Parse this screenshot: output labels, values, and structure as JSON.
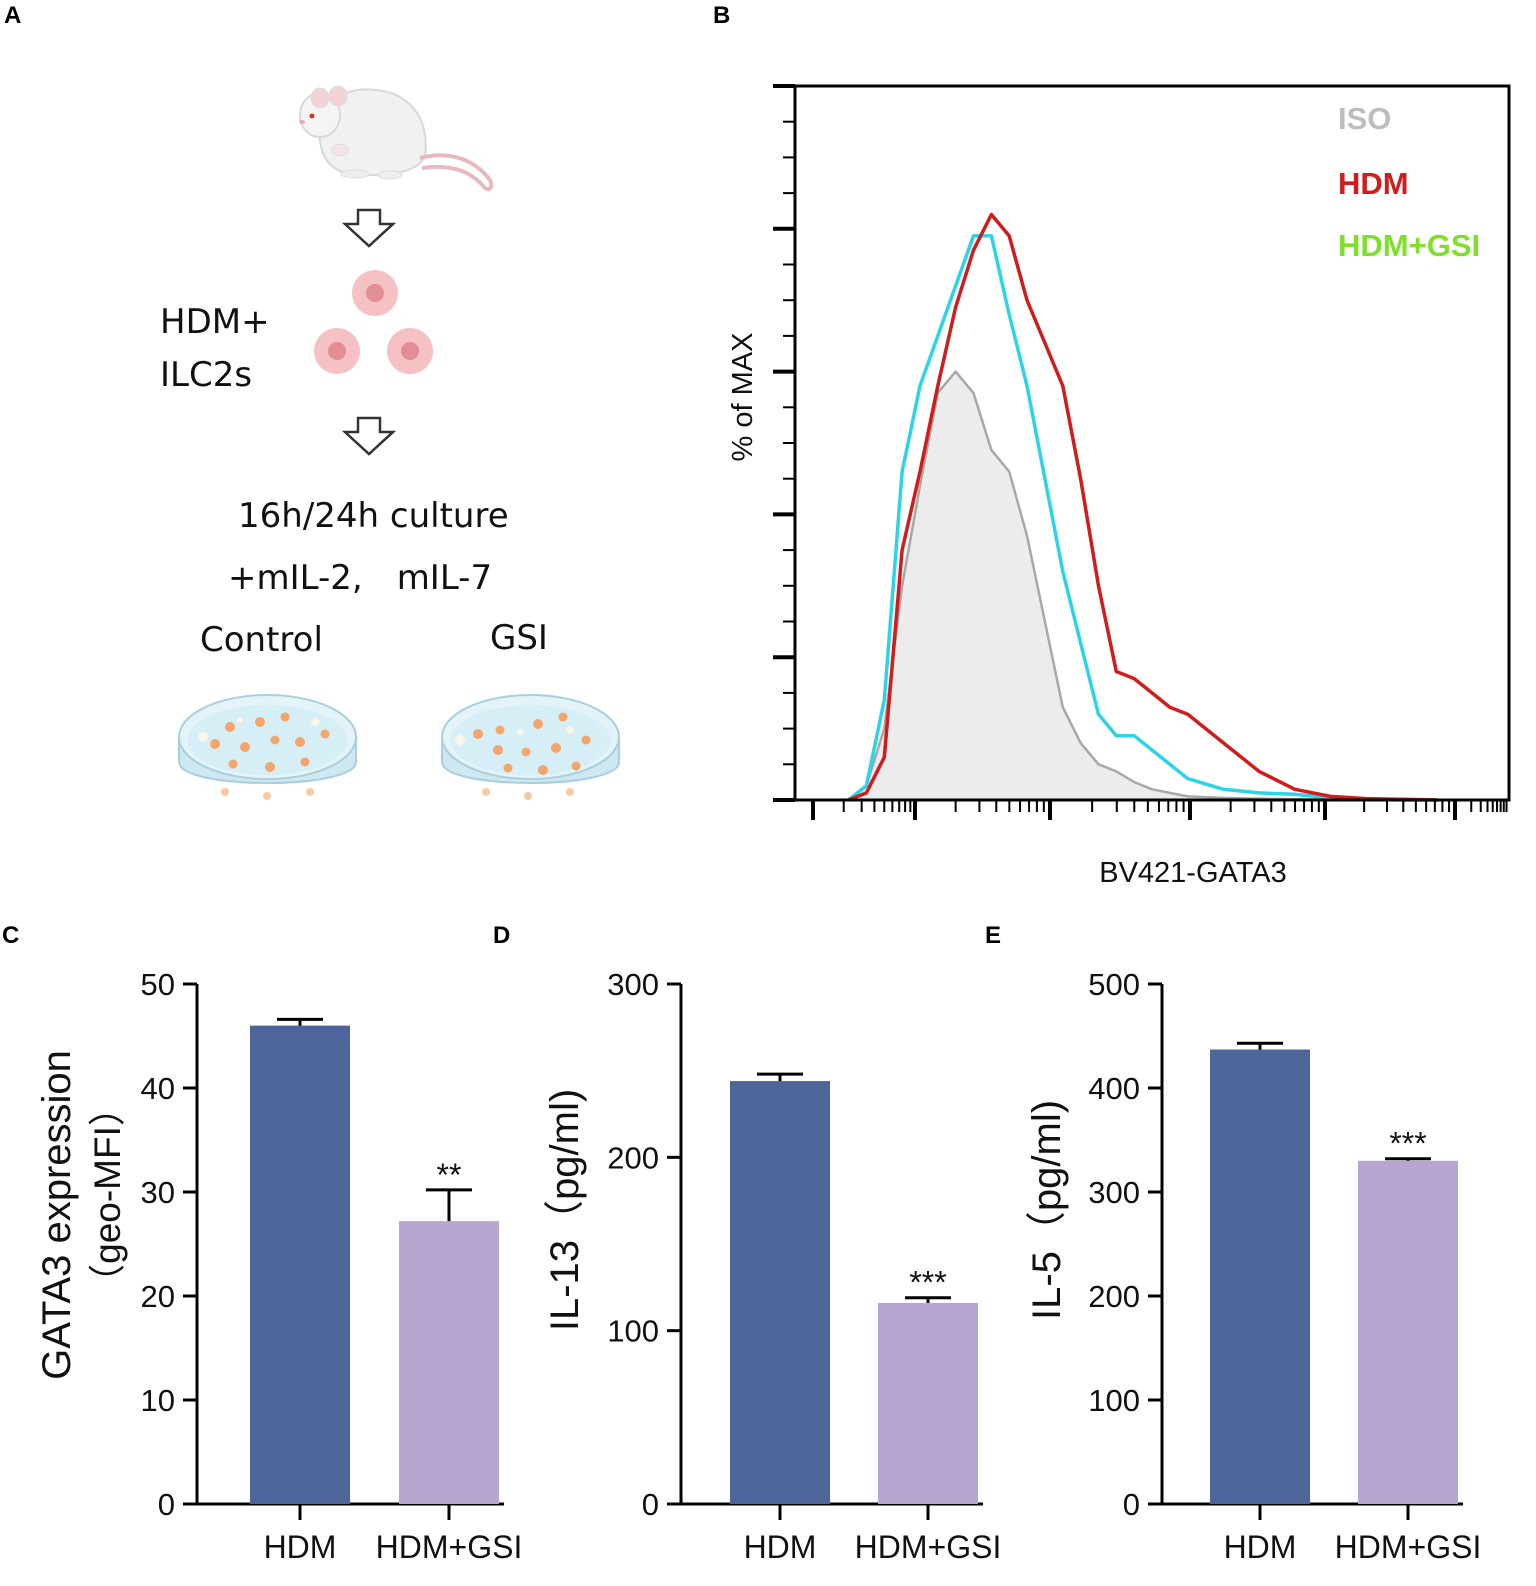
{
  "panels": {
    "a": "A",
    "b": "B",
    "c": "C",
    "d": "D",
    "e": "E"
  },
  "schematic": {
    "treatment_line1": "HDM+",
    "treatment_line2": "ILC2s",
    "culture_line1": "16h/24h culture",
    "culture_line2": "+mIL-2,　mIL-7",
    "dish_left": "Control",
    "dish_right": "GSI",
    "icons": [
      "mouse-icon",
      "down-arrow-icon",
      "cell-icon",
      "petri-dish-icon"
    ]
  },
  "colors": {
    "iso": "#bdbdbd",
    "hdm": "#d01c1c",
    "hdm_gsi_legend": "#7ee02a",
    "hdm_gsi_line": "#2cd4e6",
    "bar_hdm": "#4d659a",
    "bar_gsi": "#b7a6d0"
  },
  "chart_data": [
    {
      "panel": "B",
      "type": "line",
      "xlabel": "BV421-GATA3",
      "ylabel": "% of MAX",
      "xscale": "log",
      "ylim": [
        0,
        100
      ],
      "legend": [
        "ISO",
        "HDM",
        "HDM+GSI"
      ],
      "legend_position": "top-right",
      "series": [
        {
          "name": "ISO",
          "filled": true,
          "x": [
            0.15,
            0.2,
            0.25,
            0.3,
            0.35,
            0.4,
            0.45,
            0.5,
            0.55,
            0.6,
            0.65,
            0.7,
            0.75,
            0.8,
            0.85,
            0.9,
            0.95,
            1.0,
            1.05,
            1.1,
            1.2,
            1.3,
            1.4,
            1.5,
            1.6,
            1.7,
            1.8
          ],
          "y": [
            0,
            2,
            10,
            30,
            44,
            57,
            60,
            57,
            49,
            46,
            37,
            25,
            13,
            8,
            5,
            4,
            2.5,
            1.5,
            1,
            0.5,
            0.3,
            0.2,
            0.1,
            0.1,
            0,
            0,
            0
          ]
        },
        {
          "name": "HDM+GSI",
          "filled": false,
          "x": [
            0.15,
            0.2,
            0.25,
            0.3,
            0.35,
            0.4,
            0.45,
            0.5,
            0.55,
            0.6,
            0.65,
            0.7,
            0.75,
            0.8,
            0.85,
            0.9,
            0.95,
            1.0,
            1.05,
            1.1,
            1.2,
            1.3,
            1.4,
            1.5,
            1.6,
            1.7,
            1.8
          ],
          "y": [
            0,
            2,
            14,
            46,
            58,
            65,
            72,
            79,
            79,
            68,
            58,
            45,
            32,
            22,
            12,
            9,
            9,
            7,
            5,
            3,
            1.5,
            1,
            0.8,
            0.3,
            0.1,
            0,
            0
          ]
        },
        {
          "name": "HDM",
          "filled": false,
          "x": [
            0.15,
            0.2,
            0.25,
            0.3,
            0.35,
            0.4,
            0.45,
            0.5,
            0.55,
            0.6,
            0.65,
            0.7,
            0.75,
            0.8,
            0.85,
            0.9,
            0.95,
            1.0,
            1.05,
            1.1,
            1.2,
            1.3,
            1.4,
            1.5,
            1.6,
            1.7,
            1.8
          ],
          "y": [
            0,
            1,
            6,
            35,
            46,
            58,
            69,
            77,
            82,
            79,
            70,
            64,
            58,
            45,
            30,
            18,
            17,
            15,
            13,
            12,
            8,
            4,
            1.5,
            0.5,
            0.2,
            0.1,
            0
          ]
        }
      ]
    },
    {
      "panel": "C",
      "type": "bar",
      "categories": [
        "HDM",
        "HDM+GSI"
      ],
      "values": [
        46,
        27.2
      ],
      "errors": [
        0.6,
        3.0
      ],
      "significance": [
        "",
        "**"
      ],
      "ylabel_line1": "GATA3 expression",
      "ylabel_line2": "（geo-MFI）",
      "ylim": [
        0,
        50
      ],
      "yticks": [
        0,
        10,
        20,
        30,
        40,
        50
      ]
    },
    {
      "panel": "D",
      "type": "bar",
      "categories": [
        "HDM",
        "HDM+GSI"
      ],
      "values": [
        244,
        116
      ],
      "errors": [
        4,
        3
      ],
      "significance": [
        "",
        "***"
      ],
      "ylabel": "IL-13（pg/ml)",
      "ylim": [
        0,
        300
      ],
      "yticks": [
        0,
        100,
        200,
        300
      ]
    },
    {
      "panel": "E",
      "type": "bar",
      "categories": [
        "HDM",
        "HDM+GSI"
      ],
      "values": [
        437,
        330
      ],
      "errors": [
        6,
        2
      ],
      "significance": [
        "",
        "***"
      ],
      "ylabel": "IL-5（pg/ml)",
      "ylim": [
        0,
        500
      ],
      "yticks": [
        0,
        100,
        200,
        300,
        400,
        500
      ]
    }
  ]
}
